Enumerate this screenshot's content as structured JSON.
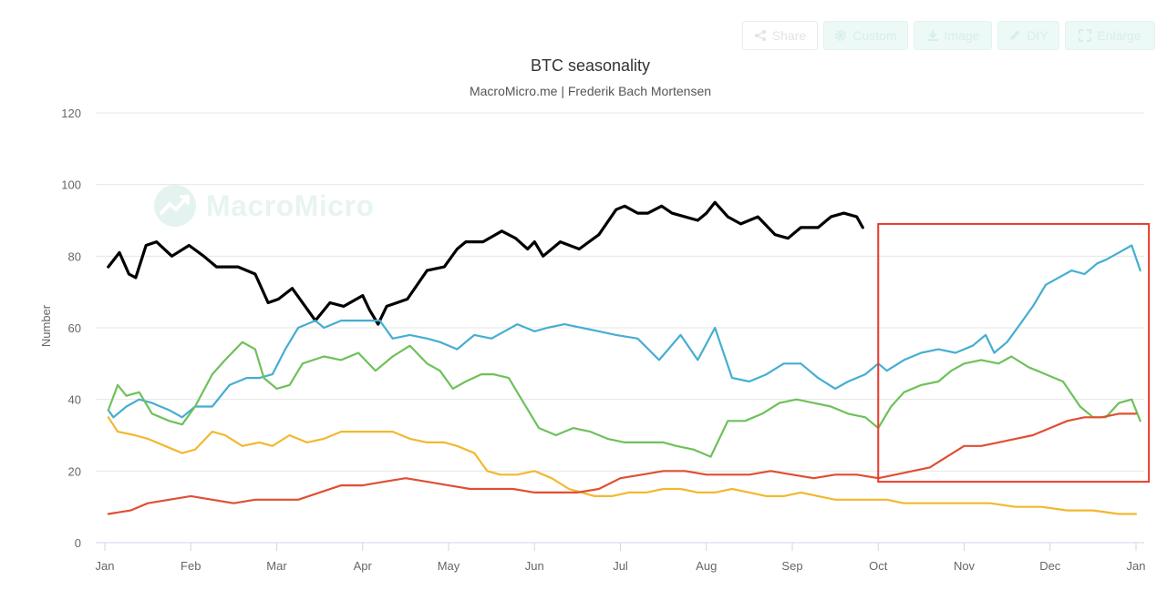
{
  "toolbar": {
    "share": {
      "label": "Share",
      "icon": "share-icon"
    },
    "custom": {
      "label": "Custom",
      "icon": "gear-icon"
    },
    "image": {
      "label": "Image",
      "icon": "download-icon"
    },
    "diy": {
      "label": "DIY",
      "icon": "pencil-icon"
    },
    "enlarge": {
      "label": "Enlarge",
      "icon": "expand-icon"
    }
  },
  "watermark": {
    "text": "MacroMicro"
  },
  "highlight_color": "#e8392b",
  "chart_data": {
    "type": "line",
    "title": "BTC seasonality",
    "subtitle": "MacroMicro.me | Frederik Bach Mortensen",
    "xlabel": "",
    "ylabel": "Number",
    "ylim": [
      0,
      120
    ],
    "yticks": [
      0,
      20,
      40,
      60,
      80,
      100,
      120
    ],
    "xticks": [
      "Jan",
      "Feb",
      "Mar",
      "Apr",
      "May",
      "Jun",
      "Jul",
      "Aug",
      "Sep",
      "Oct",
      "Nov",
      "Dec",
      "Jan"
    ],
    "grid": true,
    "legend": "none",
    "x_unit": "month of year (0 = Jan 1, 12 = next Jan 1)",
    "highlight_box": {
      "x": [
        9.0,
        12.15
      ],
      "y": [
        17,
        89
      ]
    },
    "series": [
      {
        "color": "#000000",
        "width": 3.2,
        "x": [
          0.04,
          0.17,
          0.28,
          0.36,
          0.48,
          0.6,
          0.78,
          0.98,
          1.15,
          1.3,
          1.55,
          1.75,
          1.9,
          2.02,
          2.18,
          2.45,
          2.62,
          2.78,
          3.0,
          3.08,
          3.18,
          3.28,
          3.4,
          3.52,
          3.75,
          3.95,
          4.1,
          4.2,
          4.4,
          4.62,
          4.78,
          4.92,
          5.0,
          5.1,
          5.3,
          5.52,
          5.75,
          5.95,
          6.05,
          6.2,
          6.32,
          6.48,
          6.6,
          6.75,
          6.9,
          7.0,
          7.1,
          7.25,
          7.4,
          7.6,
          7.8,
          7.95,
          8.1,
          8.3,
          8.45,
          8.6,
          8.75,
          8.82
        ],
        "values": [
          77,
          81,
          75,
          74,
          83,
          84,
          80,
          83,
          80,
          77,
          77,
          75,
          67,
          68,
          71,
          62,
          67,
          66,
          69,
          65,
          61,
          66,
          67,
          68,
          76,
          77,
          82,
          84,
          84,
          87,
          85,
          82,
          84,
          80,
          84,
          82,
          86,
          93,
          94,
          92,
          92,
          94,
          92,
          91,
          90,
          92,
          95,
          91,
          89,
          91,
          86,
          85,
          88,
          88,
          91,
          92,
          91,
          88
        ]
      },
      {
        "color": "#45aed1",
        "width": 2.2,
        "x": [
          0.04,
          0.1,
          0.25,
          0.4,
          0.55,
          0.75,
          0.9,
          1.05,
          1.25,
          1.45,
          1.65,
          1.8,
          1.95,
          2.1,
          2.25,
          2.45,
          2.55,
          2.75,
          2.95,
          3.2,
          3.35,
          3.55,
          3.75,
          3.9,
          4.1,
          4.3,
          4.5,
          4.65,
          4.8,
          5.0,
          5.15,
          5.35,
          5.55,
          5.75,
          5.95,
          6.2,
          6.45,
          6.7,
          6.9,
          7.1,
          7.3,
          7.5,
          7.7,
          7.9,
          8.1,
          8.3,
          8.5,
          8.65,
          8.85,
          9.0,
          9.1,
          9.3,
          9.5,
          9.7,
          9.9,
          10.1,
          10.25,
          10.35,
          10.5,
          10.65,
          10.8,
          10.95,
          11.1,
          11.25,
          11.4,
          11.55,
          11.65,
          11.8,
          11.95,
          12.05
        ],
        "values": [
          37,
          35,
          38,
          40,
          39,
          37,
          35,
          38,
          38,
          44,
          46,
          46,
          47,
          54,
          60,
          62,
          60,
          62,
          62,
          62,
          57,
          58,
          57,
          56,
          54,
          58,
          57,
          59,
          61,
          59,
          60,
          61,
          60,
          59,
          58,
          57,
          51,
          58,
          51,
          60,
          46,
          45,
          47,
          50,
          50,
          46,
          43,
          45,
          47,
          50,
          48,
          51,
          53,
          54,
          53,
          55,
          58,
          53,
          56,
          61,
          66,
          72,
          74,
          76,
          75,
          78,
          79,
          81,
          83,
          76
        ]
      },
      {
        "color": "#6ec15a",
        "width": 2.2,
        "x": [
          0.04,
          0.15,
          0.25,
          0.4,
          0.55,
          0.75,
          0.9,
          1.05,
          1.25,
          1.4,
          1.6,
          1.75,
          1.85,
          2.0,
          2.15,
          2.3,
          2.55,
          2.75,
          2.95,
          3.15,
          3.35,
          3.55,
          3.75,
          3.9,
          4.05,
          4.2,
          4.38,
          4.52,
          4.7,
          4.85,
          5.05,
          5.25,
          5.45,
          5.65,
          5.85,
          6.05,
          6.3,
          6.5,
          6.65,
          6.85,
          7.05,
          7.25,
          7.45,
          7.65,
          7.85,
          8.05,
          8.25,
          8.45,
          8.65,
          8.85,
          9.0,
          9.15,
          9.3,
          9.5,
          9.7,
          9.85,
          10.0,
          10.2,
          10.4,
          10.55,
          10.75,
          10.95,
          11.15,
          11.35,
          11.5,
          11.65,
          11.8,
          11.95,
          12.05
        ],
        "values": [
          37,
          44,
          41,
          42,
          36,
          34,
          33,
          38,
          47,
          51,
          56,
          54,
          46,
          43,
          44,
          50,
          52,
          51,
          53,
          48,
          52,
          55,
          50,
          48,
          43,
          45,
          47,
          47,
          46,
          40,
          32,
          30,
          32,
          31,
          29,
          28,
          28,
          28,
          27,
          26,
          24,
          34,
          34,
          36,
          39,
          40,
          39,
          38,
          36,
          35,
          32,
          38,
          42,
          44,
          45,
          48,
          50,
          51,
          50,
          52,
          49,
          47,
          45,
          38,
          35,
          35,
          39,
          40,
          34
        ]
      },
      {
        "color": "#f2b830",
        "width": 2.2,
        "x": [
          0.04,
          0.15,
          0.35,
          0.5,
          0.7,
          0.9,
          1.05,
          1.25,
          1.4,
          1.6,
          1.8,
          1.95,
          2.15,
          2.35,
          2.55,
          2.75,
          2.95,
          3.15,
          3.35,
          3.55,
          3.75,
          3.95,
          4.1,
          4.3,
          4.45,
          4.6,
          4.8,
          5.0,
          5.2,
          5.4,
          5.55,
          5.7,
          5.9,
          6.1,
          6.3,
          6.5,
          6.7,
          6.9,
          7.1,
          7.3,
          7.5,
          7.7,
          7.9,
          8.1,
          8.3,
          8.5,
          8.7,
          8.9,
          9.1,
          9.3,
          9.5,
          9.8,
          10.1,
          10.3,
          10.6,
          10.9,
          11.2,
          11.5,
          11.8,
          12.0
        ],
        "values": [
          35,
          31,
          30,
          29,
          27,
          25,
          26,
          31,
          30,
          27,
          28,
          27,
          30,
          28,
          29,
          31,
          31,
          31,
          31,
          29,
          28,
          28,
          27,
          25,
          20,
          19,
          19,
          20,
          18,
          15,
          14,
          13,
          13,
          14,
          14,
          15,
          15,
          14,
          14,
          15,
          14,
          13,
          13,
          14,
          13,
          12,
          12,
          12,
          12,
          11,
          11,
          11,
          11,
          11,
          10,
          10,
          9,
          9,
          8,
          8
        ]
      },
      {
        "color": "#e04f32",
        "width": 2.2,
        "x": [
          0.04,
          0.3,
          0.5,
          0.75,
          1.0,
          1.25,
          1.5,
          1.75,
          2.0,
          2.25,
          2.5,
          2.75,
          3.0,
          3.25,
          3.5,
          3.75,
          4.0,
          4.25,
          4.5,
          4.75,
          5.0,
          5.25,
          5.5,
          5.75,
          6.0,
          6.25,
          6.5,
          6.75,
          7.0,
          7.25,
          7.5,
          7.75,
          8.0,
          8.25,
          8.5,
          8.75,
          9.0,
          9.2,
          9.4,
          9.6,
          9.8,
          10.0,
          10.2,
          10.4,
          10.6,
          10.8,
          11.0,
          11.2,
          11.4,
          11.6,
          11.8,
          12.0
        ],
        "values": [
          8,
          9,
          11,
          12,
          13,
          12,
          11,
          12,
          12,
          12,
          14,
          16,
          16,
          17,
          18,
          17,
          16,
          15,
          15,
          15,
          14,
          14,
          14,
          15,
          18,
          19,
          20,
          20,
          19,
          19,
          19,
          20,
          19,
          18,
          19,
          19,
          18,
          19,
          20,
          21,
          24,
          27,
          27,
          28,
          29,
          30,
          32,
          34,
          35,
          35,
          36,
          36
        ]
      }
    ]
  }
}
